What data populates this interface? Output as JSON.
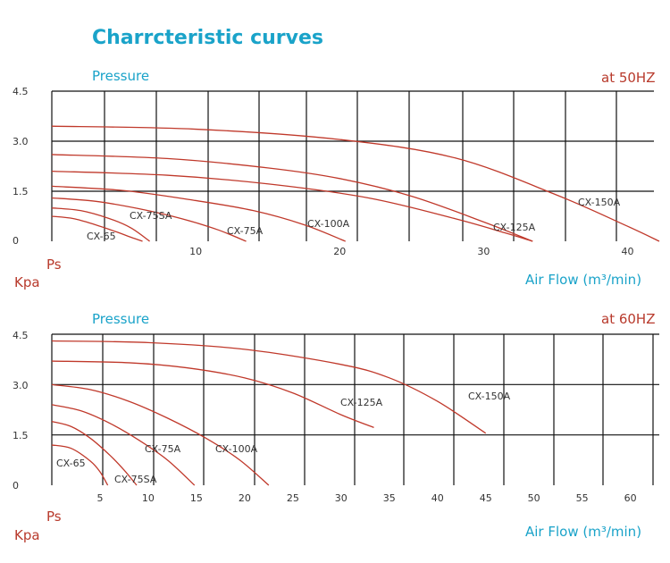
{
  "title": "Charrcteristic curves",
  "colors": {
    "title": "#1aa3c9",
    "accent": "#b83a2c",
    "curve": "#c0392b",
    "grid": "#111111",
    "text": "#333333"
  },
  "charts": [
    {
      "y_title": "Pressure",
      "frequency": "at  50HZ",
      "y_unit_1": "Ps",
      "y_unit_2": "Kpa",
      "x_title": "Air Flow (m³/min)",
      "y_ticks": [
        "4.5",
        "3.0",
        "1.5",
        "0"
      ],
      "x_ticks": [
        "10",
        "20",
        "30",
        "40"
      ]
    },
    {
      "y_title": "Pressure",
      "frequency": "at  60HZ",
      "y_unit_1": "Ps",
      "y_unit_2": "Kpa",
      "x_title": "Air Flow (m³/min)",
      "y_ticks": [
        "4.5",
        "3.0",
        "1.5",
        "0"
      ],
      "x_ticks": [
        "5",
        "10",
        "15",
        "20",
        "25",
        "30",
        "35",
        "40",
        "45",
        "50",
        "55",
        "60"
      ]
    }
  ],
  "chart_data": [
    {
      "type": "line",
      "title": "at 50HZ",
      "xlabel": "Air Flow (m³/min)",
      "ylabel": "Pressure",
      "xlim": [
        0,
        42.2
      ],
      "ylim": [
        0,
        4.5
      ],
      "x_ticks": [
        10,
        20,
        30,
        40
      ],
      "y_ticks": [
        0,
        1.5,
        3.0,
        4.5
      ],
      "grid": true,
      "series": [
        {
          "name": "CX-65",
          "x": [
            0,
            1.5,
            3,
            4.5,
            5.5,
            6.3
          ],
          "y": [
            0.75,
            0.68,
            0.5,
            0.28,
            0.12,
            0
          ]
        },
        {
          "name": "CX-75SA",
          "x": [
            0,
            2,
            4,
            5.5,
            6.8
          ],
          "y": [
            1.0,
            0.92,
            0.68,
            0.4,
            0
          ]
        },
        {
          "name": "CX-75A",
          "x": [
            0,
            3,
            6,
            9,
            11.5,
            13.5
          ],
          "y": [
            1.3,
            1.2,
            0.98,
            0.68,
            0.35,
            0
          ]
        },
        {
          "name": "CX-100A",
          "x": [
            0,
            5,
            10,
            14,
            17.5,
            20.4
          ],
          "y": [
            1.65,
            1.52,
            1.22,
            0.92,
            0.5,
            0
          ]
        },
        {
          "name": "CX-125A",
          "x": [
            0,
            8,
            15,
            22,
            28,
            31.5,
            33.4
          ],
          "y": [
            2.1,
            1.98,
            1.72,
            1.3,
            0.68,
            0.25,
            0
          ]
        },
        {
          "name": "CX-125A",
          "x": [
            0,
            8,
            15,
            20,
            25,
            30,
            33.4
          ],
          "y": [
            2.6,
            2.48,
            2.2,
            1.88,
            1.35,
            0.58,
            0
          ]
        },
        {
          "name": "CX-150A",
          "x": [
            0,
            10,
            20,
            28,
            35,
            40,
            42.2
          ],
          "y": [
            3.45,
            3.36,
            3.05,
            2.5,
            1.4,
            0.45,
            0
          ]
        }
      ],
      "annotations": [
        "CX-65",
        "CX-75SA",
        "CX-75A",
        "CX-100A",
        "CX-125A",
        "CX-150A"
      ]
    },
    {
      "type": "line",
      "title": "at 60HZ",
      "xlabel": "Air Flow (m³/min)",
      "ylabel": "Pressure",
      "xlim": [
        0,
        63
      ],
      "ylim": [
        0,
        4.5
      ],
      "x_ticks": [
        5,
        10,
        15,
        20,
        25,
        30,
        35,
        40,
        45,
        50,
        55,
        60
      ],
      "y_ticks": [
        0,
        1.5,
        3.0,
        4.5
      ],
      "grid": true,
      "series": [
        {
          "name": "CX-65",
          "x": [
            0,
            2,
            4,
            5,
            5.8
          ],
          "y": [
            1.2,
            1.1,
            0.72,
            0.4,
            0
          ]
        },
        {
          "name": "CX-75SA",
          "x": [
            0,
            2,
            4,
            6,
            7.5,
            8.8
          ],
          "y": [
            1.9,
            1.75,
            1.4,
            0.9,
            0.45,
            0
          ]
        },
        {
          "name": "CX-75A",
          "x": [
            0,
            3,
            6,
            9,
            12,
            14.8
          ],
          "y": [
            2.4,
            2.22,
            1.85,
            1.35,
            0.75,
            0
          ]
        },
        {
          "name": "CX-100A",
          "x": [
            0,
            4,
            8,
            12,
            16,
            19.5,
            22.5
          ],
          "y": [
            3.0,
            2.85,
            2.5,
            2.0,
            1.4,
            0.75,
            0
          ]
        },
        {
          "name": "CX-125A",
          "x": [
            0,
            8,
            14,
            20,
            25,
            30,
            33.4
          ],
          "y": [
            3.7,
            3.65,
            3.5,
            3.2,
            2.75,
            2.1,
            1.72
          ]
        },
        {
          "name": "CX-150A",
          "x": [
            0,
            10,
            20,
            30,
            35,
            40,
            45
          ],
          "y": [
            4.3,
            4.25,
            4.05,
            3.6,
            3.2,
            2.5,
            1.55
          ]
        }
      ],
      "annotations": [
        "CX-65",
        "CX-75SA",
        "CX-75A",
        "CX-100A",
        "CX-125A",
        "CX-150A"
      ]
    }
  ]
}
